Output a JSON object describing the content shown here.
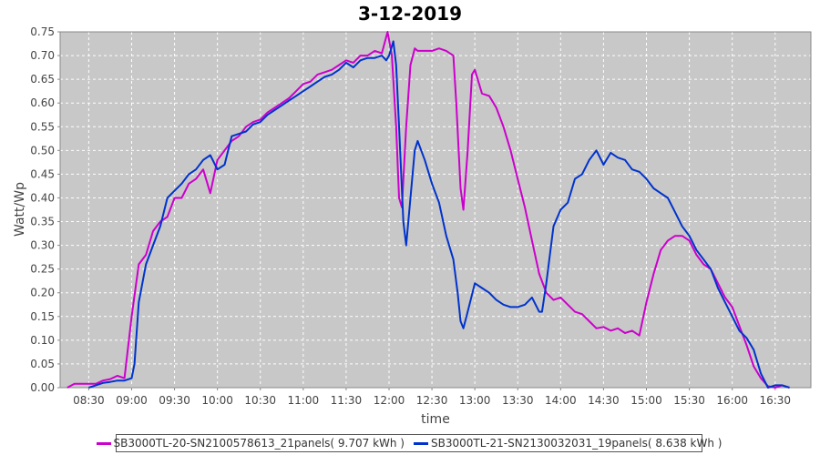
{
  "chart_data": {
    "type": "line",
    "title": "3-12-2019",
    "xlabel": "time",
    "ylabel": "Watt/Wp",
    "xlim": [
      "08:10",
      "16:55"
    ],
    "ylim": [
      0,
      0.75
    ],
    "x_ticks": [
      "08:30",
      "09:00",
      "09:30",
      "10:00",
      "10:30",
      "11:00",
      "11:30",
      "12:00",
      "12:30",
      "13:00",
      "13:30",
      "14:00",
      "14:30",
      "15:00",
      "15:30",
      "16:00",
      "16:30"
    ],
    "y_ticks": [
      0.0,
      0.05,
      0.1,
      0.15,
      0.2,
      0.25,
      0.3,
      0.35,
      0.4,
      0.45,
      0.5,
      0.55,
      0.6,
      0.65,
      0.7,
      0.75
    ],
    "y_tick_labels": [
      "0.00",
      "0.05",
      "0.10",
      "0.15",
      "0.20",
      "0.25",
      "0.30",
      "0.35",
      "0.40",
      "0.45",
      "0.50",
      "0.55",
      "0.60",
      "0.65",
      "0.70",
      "0.75"
    ],
    "grid": true,
    "legend_position": "bottom",
    "series": [
      {
        "name": "SB3000TL-20-SN2100578613_21panels( 9.707 kWh )",
        "color": "#cc00cc",
        "points": [
          [
            "08:15",
            0.0
          ],
          [
            "08:20",
            0.008
          ],
          [
            "08:30",
            0.008
          ],
          [
            "08:35",
            0.008
          ],
          [
            "08:40",
            0.015
          ],
          [
            "08:45",
            0.018
          ],
          [
            "08:50",
            0.025
          ],
          [
            "08:55",
            0.02
          ],
          [
            "09:00",
            0.15
          ],
          [
            "09:05",
            0.26
          ],
          [
            "09:10",
            0.28
          ],
          [
            "09:15",
            0.33
          ],
          [
            "09:20",
            0.35
          ],
          [
            "09:25",
            0.36
          ],
          [
            "09:30",
            0.4
          ],
          [
            "09:35",
            0.4
          ],
          [
            "09:40",
            0.43
          ],
          [
            "09:45",
            0.44
          ],
          [
            "09:50",
            0.46
          ],
          [
            "09:55",
            0.41
          ],
          [
            "10:00",
            0.48
          ],
          [
            "10:05",
            0.5
          ],
          [
            "10:10",
            0.52
          ],
          [
            "10:15",
            0.53
          ],
          [
            "10:20",
            0.55
          ],
          [
            "10:25",
            0.56
          ],
          [
            "10:30",
            0.565
          ],
          [
            "10:35",
            0.58
          ],
          [
            "10:40",
            0.59
          ],
          [
            "10:45",
            0.6
          ],
          [
            "10:50",
            0.61
          ],
          [
            "10:55",
            0.625
          ],
          [
            "11:00",
            0.64
          ],
          [
            "11:05",
            0.645
          ],
          [
            "11:10",
            0.66
          ],
          [
            "11:15",
            0.665
          ],
          [
            "11:20",
            0.67
          ],
          [
            "11:25",
            0.68
          ],
          [
            "11:30",
            0.69
          ],
          [
            "11:35",
            0.685
          ],
          [
            "11:40",
            0.7
          ],
          [
            "11:45",
            0.7
          ],
          [
            "11:50",
            0.71
          ],
          [
            "11:55",
            0.705
          ],
          [
            "11:59",
            0.75
          ],
          [
            "12:02",
            0.7
          ],
          [
            "12:05",
            0.55
          ],
          [
            "12:07",
            0.4
          ],
          [
            "12:09",
            0.38
          ],
          [
            "12:12",
            0.55
          ],
          [
            "12:15",
            0.68
          ],
          [
            "12:18",
            0.715
          ],
          [
            "12:20",
            0.71
          ],
          [
            "12:25",
            0.71
          ],
          [
            "12:30",
            0.71
          ],
          [
            "12:35",
            0.715
          ],
          [
            "12:40",
            0.71
          ],
          [
            "12:45",
            0.7
          ],
          [
            "12:47",
            0.6
          ],
          [
            "12:50",
            0.42
          ],
          [
            "12:52",
            0.375
          ],
          [
            "12:55",
            0.5
          ],
          [
            "12:58",
            0.66
          ],
          [
            "13:00",
            0.67
          ],
          [
            "13:05",
            0.62
          ],
          [
            "13:10",
            0.615
          ],
          [
            "13:15",
            0.59
          ],
          [
            "13:20",
            0.55
          ],
          [
            "13:25",
            0.5
          ],
          [
            "13:30",
            0.44
          ],
          [
            "13:35",
            0.38
          ],
          [
            "13:40",
            0.31
          ],
          [
            "13:45",
            0.24
          ],
          [
            "13:50",
            0.2
          ],
          [
            "13:55",
            0.185
          ],
          [
            "14:00",
            0.19
          ],
          [
            "14:05",
            0.175
          ],
          [
            "14:10",
            0.16
          ],
          [
            "14:15",
            0.155
          ],
          [
            "14:20",
            0.14
          ],
          [
            "14:25",
            0.125
          ],
          [
            "14:30",
            0.128
          ],
          [
            "14:35",
            0.12
          ],
          [
            "14:40",
            0.125
          ],
          [
            "14:45",
            0.115
          ],
          [
            "14:50",
            0.12
          ],
          [
            "14:55",
            0.11
          ],
          [
            "15:00",
            0.18
          ],
          [
            "15:05",
            0.24
          ],
          [
            "15:10",
            0.29
          ],
          [
            "15:15",
            0.31
          ],
          [
            "15:20",
            0.32
          ],
          [
            "15:25",
            0.32
          ],
          [
            "15:30",
            0.31
          ],
          [
            "15:35",
            0.28
          ],
          [
            "15:40",
            0.26
          ],
          [
            "15:45",
            0.25
          ],
          [
            "15:50",
            0.22
          ],
          [
            "15:55",
            0.19
          ],
          [
            "16:00",
            0.17
          ],
          [
            "16:05",
            0.13
          ],
          [
            "16:10",
            0.09
          ],
          [
            "16:15",
            0.045
          ],
          [
            "16:20",
            0.02
          ],
          [
            "16:25",
            0.003
          ],
          [
            "16:30",
            0.0
          ],
          [
            "16:35",
            0.005
          ],
          [
            "16:40",
            0.0
          ]
        ]
      },
      {
        "name": "SB3000TL-21-SN2130032031_19panels( 8.638 kWh )",
        "color": "#0033cc",
        "points": [
          [
            "08:30",
            0.0
          ],
          [
            "08:35",
            0.005
          ],
          [
            "08:40",
            0.01
          ],
          [
            "08:45",
            0.012
          ],
          [
            "08:50",
            0.015
          ],
          [
            "08:55",
            0.015
          ],
          [
            "09:00",
            0.02
          ],
          [
            "09:02",
            0.05
          ],
          [
            "09:05",
            0.18
          ],
          [
            "09:10",
            0.26
          ],
          [
            "09:15",
            0.3
          ],
          [
            "09:20",
            0.34
          ],
          [
            "09:25",
            0.4
          ],
          [
            "09:30",
            0.415
          ],
          [
            "09:35",
            0.43
          ],
          [
            "09:40",
            0.45
          ],
          [
            "09:45",
            0.46
          ],
          [
            "09:50",
            0.48
          ],
          [
            "09:55",
            0.49
          ],
          [
            "10:00",
            0.46
          ],
          [
            "10:05",
            0.47
          ],
          [
            "10:10",
            0.53
          ],
          [
            "10:15",
            0.535
          ],
          [
            "10:20",
            0.54
          ],
          [
            "10:25",
            0.555
          ],
          [
            "10:30",
            0.56
          ],
          [
            "10:35",
            0.575
          ],
          [
            "10:40",
            0.585
          ],
          [
            "10:45",
            0.595
          ],
          [
            "10:50",
            0.605
          ],
          [
            "10:55",
            0.615
          ],
          [
            "11:00",
            0.625
          ],
          [
            "11:05",
            0.635
          ],
          [
            "11:10",
            0.645
          ],
          [
            "11:15",
            0.655
          ],
          [
            "11:20",
            0.66
          ],
          [
            "11:25",
            0.67
          ],
          [
            "11:30",
            0.685
          ],
          [
            "11:35",
            0.675
          ],
          [
            "11:40",
            0.69
          ],
          [
            "11:45",
            0.695
          ],
          [
            "11:50",
            0.695
          ],
          [
            "11:55",
            0.7
          ],
          [
            "11:58",
            0.69
          ],
          [
            "12:00",
            0.7
          ],
          [
            "12:03",
            0.73
          ],
          [
            "12:05",
            0.68
          ],
          [
            "12:07",
            0.55
          ],
          [
            "12:10",
            0.35
          ],
          [
            "12:12",
            0.3
          ],
          [
            "12:15",
            0.4
          ],
          [
            "12:18",
            0.5
          ],
          [
            "12:20",
            0.52
          ],
          [
            "12:25",
            0.48
          ],
          [
            "12:30",
            0.43
          ],
          [
            "12:35",
            0.39
          ],
          [
            "12:40",
            0.32
          ],
          [
            "12:45",
            0.27
          ],
          [
            "12:48",
            0.2
          ],
          [
            "12:50",
            0.14
          ],
          [
            "12:52",
            0.125
          ],
          [
            "12:55",
            0.16
          ],
          [
            "13:00",
            0.22
          ],
          [
            "13:05",
            0.21
          ],
          [
            "13:10",
            0.2
          ],
          [
            "13:15",
            0.185
          ],
          [
            "13:20",
            0.175
          ],
          [
            "13:25",
            0.17
          ],
          [
            "13:30",
            0.17
          ],
          [
            "13:35",
            0.175
          ],
          [
            "13:40",
            0.19
          ],
          [
            "13:45",
            0.16
          ],
          [
            "13:47",
            0.16
          ],
          [
            "13:50",
            0.22
          ],
          [
            "13:55",
            0.34
          ],
          [
            "14:00",
            0.375
          ],
          [
            "14:05",
            0.39
          ],
          [
            "14:10",
            0.44
          ],
          [
            "14:15",
            0.45
          ],
          [
            "14:20",
            0.48
          ],
          [
            "14:25",
            0.5
          ],
          [
            "14:30",
            0.47
          ],
          [
            "14:35",
            0.495
          ],
          [
            "14:40",
            0.485
          ],
          [
            "14:45",
            0.48
          ],
          [
            "14:50",
            0.46
          ],
          [
            "14:55",
            0.455
          ],
          [
            "15:00",
            0.44
          ],
          [
            "15:05",
            0.42
          ],
          [
            "15:10",
            0.41
          ],
          [
            "15:15",
            0.4
          ],
          [
            "15:20",
            0.37
          ],
          [
            "15:25",
            0.34
          ],
          [
            "15:30",
            0.32
          ],
          [
            "15:35",
            0.29
          ],
          [
            "15:40",
            0.27
          ],
          [
            "15:45",
            0.25
          ],
          [
            "15:50",
            0.21
          ],
          [
            "15:55",
            0.18
          ],
          [
            "16:00",
            0.15
          ],
          [
            "16:05",
            0.12
          ],
          [
            "16:10",
            0.105
          ],
          [
            "16:15",
            0.08
          ],
          [
            "16:20",
            0.03
          ],
          [
            "16:25",
            0.0
          ],
          [
            "16:30",
            0.005
          ],
          [
            "16:35",
            0.005
          ],
          [
            "16:40",
            0.0
          ]
        ]
      }
    ]
  }
}
